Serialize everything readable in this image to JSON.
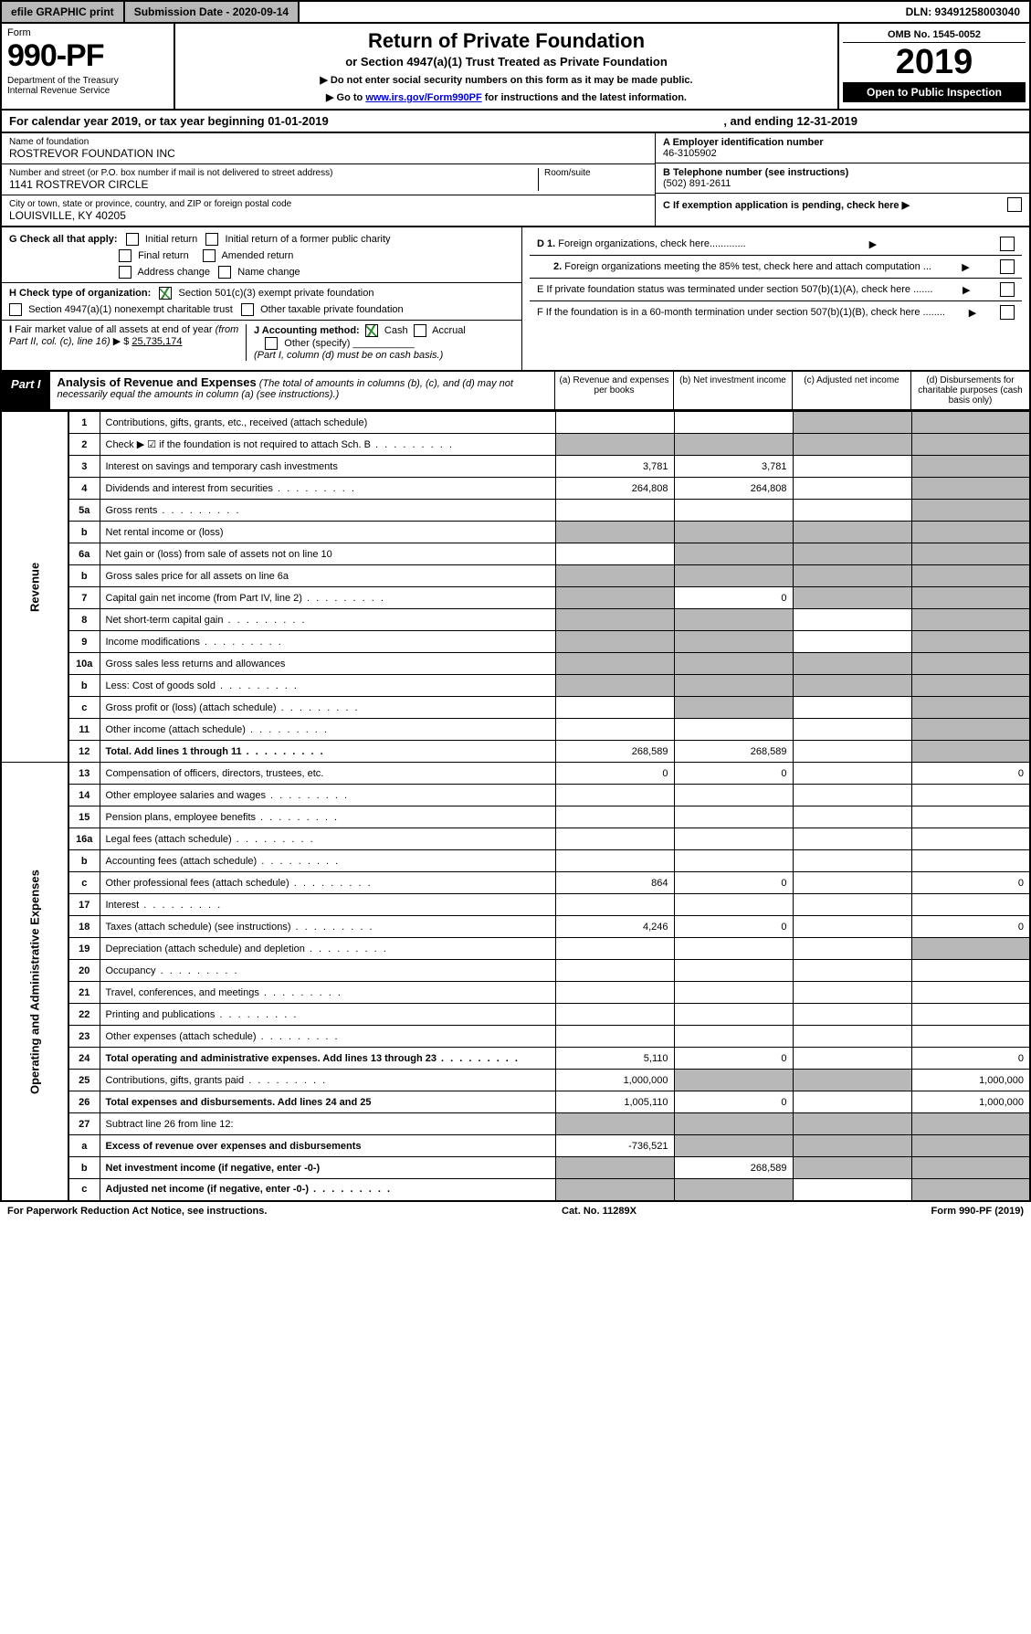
{
  "topbar": {
    "efile": "efile GRAPHIC print",
    "submission": "Submission Date - 2020-09-14",
    "dln": "DLN: 93491258003040"
  },
  "header": {
    "form": "Form",
    "num": "990-PF",
    "dept": "Department of the Treasury\nInternal Revenue Service",
    "title": "Return of Private Foundation",
    "sub": "or Section 4947(a)(1) Trust Treated as Private Foundation",
    "note1": "▶ Do not enter social security numbers on this form as it may be made public.",
    "note2_pre": "▶ Go to ",
    "note2_link": "www.irs.gov/Form990PF",
    "note2_post": " for instructions and the latest information.",
    "omb": "OMB No. 1545-0052",
    "year": "2019",
    "open": "Open to Public Inspection"
  },
  "cal": {
    "text1": "For calendar year 2019, or tax year beginning 01-01-2019",
    "text2": ", and ending 12-31-2019"
  },
  "info": {
    "name_lbl": "Name of foundation",
    "name_val": "ROSTREVOR FOUNDATION INC",
    "addr_lbl": "Number and street (or P.O. box number if mail is not delivered to street address)",
    "addr_val": "1141 ROSTREVOR CIRCLE",
    "room_lbl": "Room/suite",
    "city_lbl": "City or town, state or province, country, and ZIP or foreign postal code",
    "city_val": "LOUISVILLE, KY  40205",
    "ein_lbl": "A Employer identification number",
    "ein_val": "46-3105902",
    "phone_lbl": "B Telephone number (see instructions)",
    "phone_val": "(502) 891-2611",
    "c_lbl": "C If exemption application is pending, check here ▶",
    "d1": "D 1. Foreign organizations, check here.............",
    "d2": "2. Foreign organizations meeting the 85% test, check here and attach computation ...",
    "e": "E  If private foundation status was terminated under section 507(b)(1)(A), check here .......",
    "f": "F  If the foundation is in a 60-month termination under section 507(b)(1)(B), check here ........"
  },
  "g": {
    "label": "G Check all that apply:",
    "initial": "Initial return",
    "initial_former": "Initial return of a former public charity",
    "final": "Final return",
    "amended": "Amended return",
    "addr": "Address change",
    "name": "Name change"
  },
  "h": {
    "label": "H Check type of organization:",
    "c3": "Section 501(c)(3) exempt private foundation",
    "trust": "Section 4947(a)(1) nonexempt charitable trust",
    "other": "Other taxable private foundation"
  },
  "ij": {
    "i_lbl": "I Fair market value of all assets at end of year (from Part II, col. (c), line 16) ▶ $",
    "i_val": "25,735,174",
    "j_lbl": "J Accounting method:",
    "cash": "Cash",
    "accrual": "Accrual",
    "other": "Other (specify)",
    "note": "(Part I, column (d) must be on cash basis.)"
  },
  "part1": {
    "label": "Part I",
    "title": "Analysis of Revenue and Expenses",
    "sub": " (The total of amounts in columns (b), (c), and (d) may not necessarily equal the amounts in column (a) (see instructions).)",
    "col_a": "(a)   Revenue and expenses per books",
    "col_b": "(b)  Net investment income",
    "col_c": "(c)  Adjusted net income",
    "col_d": "(d)  Disbursements for charitable purposes (cash basis only)"
  },
  "sections": {
    "revenue": "Revenue",
    "opex": "Operating and Administrative Expenses"
  },
  "rows": [
    {
      "n": "1",
      "d": "Contributions, gifts, grants, etc., received (attach schedule)",
      "a": "",
      "b": "",
      "c": "s",
      "dcol": "s"
    },
    {
      "n": "2",
      "d": "Check ▶ ☑ if the foundation is not required to attach Sch. B",
      "a": "s",
      "b": "s",
      "c": "s",
      "dcol": "s",
      "dots": 1
    },
    {
      "n": "3",
      "d": "Interest on savings and temporary cash investments",
      "a": "3,781",
      "b": "3,781",
      "c": "",
      "dcol": "s"
    },
    {
      "n": "4",
      "d": "Dividends and interest from securities",
      "a": "264,808",
      "b": "264,808",
      "c": "",
      "dcol": "s",
      "dots": 1
    },
    {
      "n": "5a",
      "d": "Gross rents",
      "a": "",
      "b": "",
      "c": "",
      "dcol": "s",
      "dots": 1
    },
    {
      "n": "b",
      "d": "Net rental income or (loss)",
      "a": "s",
      "b": "s",
      "c": "s",
      "dcol": "s"
    },
    {
      "n": "6a",
      "d": "Net gain or (loss) from sale of assets not on line 10",
      "a": "",
      "b": "s",
      "c": "s",
      "dcol": "s"
    },
    {
      "n": "b",
      "d": "Gross sales price for all assets on line 6a",
      "a": "s",
      "b": "s",
      "c": "s",
      "dcol": "s"
    },
    {
      "n": "7",
      "d": "Capital gain net income (from Part IV, line 2)",
      "a": "s",
      "b": "0",
      "c": "s",
      "dcol": "s",
      "dots": 1
    },
    {
      "n": "8",
      "d": "Net short-term capital gain",
      "a": "s",
      "b": "s",
      "c": "",
      "dcol": "s",
      "dots": 1
    },
    {
      "n": "9",
      "d": "Income modifications",
      "a": "s",
      "b": "s",
      "c": "",
      "dcol": "s",
      "dots": 1
    },
    {
      "n": "10a",
      "d": "Gross sales less returns and allowances",
      "a": "s",
      "b": "s",
      "c": "s",
      "dcol": "s"
    },
    {
      "n": "b",
      "d": "Less: Cost of goods sold",
      "a": "s",
      "b": "s",
      "c": "s",
      "dcol": "s",
      "dots": 1
    },
    {
      "n": "c",
      "d": "Gross profit or (loss) (attach schedule)",
      "a": "",
      "b": "s",
      "c": "",
      "dcol": "s",
      "dots": 1
    },
    {
      "n": "11",
      "d": "Other income (attach schedule)",
      "a": "",
      "b": "",
      "c": "",
      "dcol": "s",
      "dots": 1
    },
    {
      "n": "12",
      "d": "Total. Add lines 1 through 11",
      "a": "268,589",
      "b": "268,589",
      "c": "",
      "dcol": "s",
      "bold": 1,
      "dots": 1
    }
  ],
  "oprows": [
    {
      "n": "13",
      "d": "Compensation of officers, directors, trustees, etc.",
      "a": "0",
      "b": "0",
      "c": "",
      "dcol": "0"
    },
    {
      "n": "14",
      "d": "Other employee salaries and wages",
      "a": "",
      "b": "",
      "c": "",
      "dcol": "",
      "dots": 1
    },
    {
      "n": "15",
      "d": "Pension plans, employee benefits",
      "a": "",
      "b": "",
      "c": "",
      "dcol": "",
      "dots": 1
    },
    {
      "n": "16a",
      "d": "Legal fees (attach schedule)",
      "a": "",
      "b": "",
      "c": "",
      "dcol": "",
      "dots": 1
    },
    {
      "n": "b",
      "d": "Accounting fees (attach schedule)",
      "a": "",
      "b": "",
      "c": "",
      "dcol": "",
      "dots": 1
    },
    {
      "n": "c",
      "d": "Other professional fees (attach schedule)",
      "a": "864",
      "b": "0",
      "c": "",
      "dcol": "0",
      "dots": 1
    },
    {
      "n": "17",
      "d": "Interest",
      "a": "",
      "b": "",
      "c": "",
      "dcol": "",
      "dots": 1
    },
    {
      "n": "18",
      "d": "Taxes (attach schedule) (see instructions)",
      "a": "4,246",
      "b": "0",
      "c": "",
      "dcol": "0",
      "dots": 1
    },
    {
      "n": "19",
      "d": "Depreciation (attach schedule) and depletion",
      "a": "",
      "b": "",
      "c": "",
      "dcol": "s",
      "dots": 1
    },
    {
      "n": "20",
      "d": "Occupancy",
      "a": "",
      "b": "",
      "c": "",
      "dcol": "",
      "dots": 1
    },
    {
      "n": "21",
      "d": "Travel, conferences, and meetings",
      "a": "",
      "b": "",
      "c": "",
      "dcol": "",
      "dots": 1
    },
    {
      "n": "22",
      "d": "Printing and publications",
      "a": "",
      "b": "",
      "c": "",
      "dcol": "",
      "dots": 1
    },
    {
      "n": "23",
      "d": "Other expenses (attach schedule)",
      "a": "",
      "b": "",
      "c": "",
      "dcol": "",
      "dots": 1
    },
    {
      "n": "24",
      "d": "Total operating and administrative expenses. Add lines 13 through 23",
      "a": "5,110",
      "b": "0",
      "c": "",
      "dcol": "0",
      "bold": 1,
      "dots": 1
    },
    {
      "n": "25",
      "d": "Contributions, gifts, grants paid",
      "a": "1,000,000",
      "b": "s",
      "c": "s",
      "dcol": "1,000,000",
      "dots": 1
    },
    {
      "n": "26",
      "d": "Total expenses and disbursements. Add lines 24 and 25",
      "a": "1,005,110",
      "b": "0",
      "c": "",
      "dcol": "1,000,000",
      "bold": 1
    },
    {
      "n": "27",
      "d": "Subtract line 26 from line 12:",
      "a": "s",
      "b": "s",
      "c": "s",
      "dcol": "s"
    },
    {
      "n": "a",
      "d": "Excess of revenue over expenses and disbursements",
      "a": "-736,521",
      "b": "s",
      "c": "s",
      "dcol": "s",
      "bold": 1
    },
    {
      "n": "b",
      "d": "Net investment income (if negative, enter -0-)",
      "a": "s",
      "b": "268,589",
      "c": "s",
      "dcol": "s",
      "bold": 1
    },
    {
      "n": "c",
      "d": "Adjusted net income (if negative, enter -0-)",
      "a": "s",
      "b": "s",
      "c": "",
      "dcol": "s",
      "bold": 1,
      "dots": 1
    }
  ],
  "footer": {
    "left": "For Paperwork Reduction Act Notice, see instructions.",
    "mid": "Cat. No. 11289X",
    "right": "Form 990-PF (2019)"
  }
}
